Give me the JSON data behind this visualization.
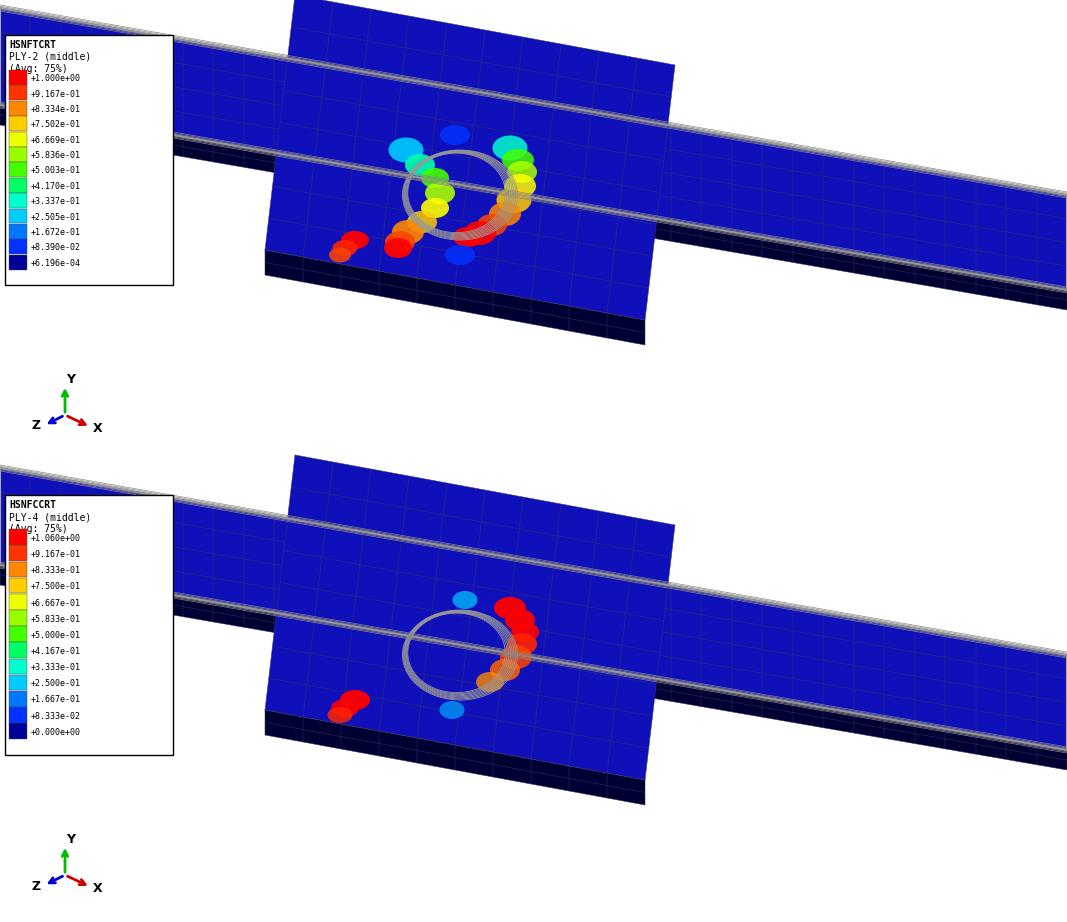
{
  "bg_color": "#ffffff",
  "beam_blue": "#1010bb",
  "beam_dark": "#000044",
  "mesh_color": "#333366",
  "mesh_lw": 0.35,
  "panel1": {
    "title_line1": "HSNFTCRT",
    "title_line2": "PLY-2 (middle)",
    "title_line3": "(Avg: 75%)",
    "legend_values": [
      "+1.000e+00",
      "+9.167e-01",
      "+8.334e-01",
      "+7.502e-01",
      "+6.669e-01",
      "+5.836e-01",
      "+5.003e-01",
      "+4.170e-01",
      "+3.337e-01",
      "+2.505e-01",
      "+1.672e-01",
      "+8.390e-02",
      "+6.196e-04"
    ],
    "legend_colors": [
      "#ff0000",
      "#ff3300",
      "#ff8800",
      "#ffcc00",
      "#eeff00",
      "#99ff00",
      "#44ff00",
      "#00ff66",
      "#00ffcc",
      "#00ccff",
      "#0077ff",
      "#0033ff",
      "#000099"
    ]
  },
  "panel2": {
    "title_line1": "HSNFCCRT",
    "title_line2": "PLY-4 (middle)",
    "title_line3": "(Avg: 75%)",
    "legend_values": [
      "+1.060e+00",
      "+9.167e-01",
      "+8.333e-01",
      "+7.500e-01",
      "+6.667e-01",
      "+5.833e-01",
      "+5.000e-01",
      "+4.167e-01",
      "+3.333e-01",
      "+2.500e-01",
      "+1.667e-01",
      "+8.333e-02",
      "+0.000e+00"
    ],
    "legend_colors": [
      "#ff0000",
      "#ff3300",
      "#ff8800",
      "#ffcc00",
      "#eeff00",
      "#99ff00",
      "#44ff00",
      "#00ff66",
      "#00ffcc",
      "#00ccff",
      "#0077ff",
      "#0033ff",
      "#000099"
    ]
  },
  "axis_Y_color": "#00bb00",
  "axis_X_color": "#cc0000",
  "axis_Z_color": "#0000cc"
}
